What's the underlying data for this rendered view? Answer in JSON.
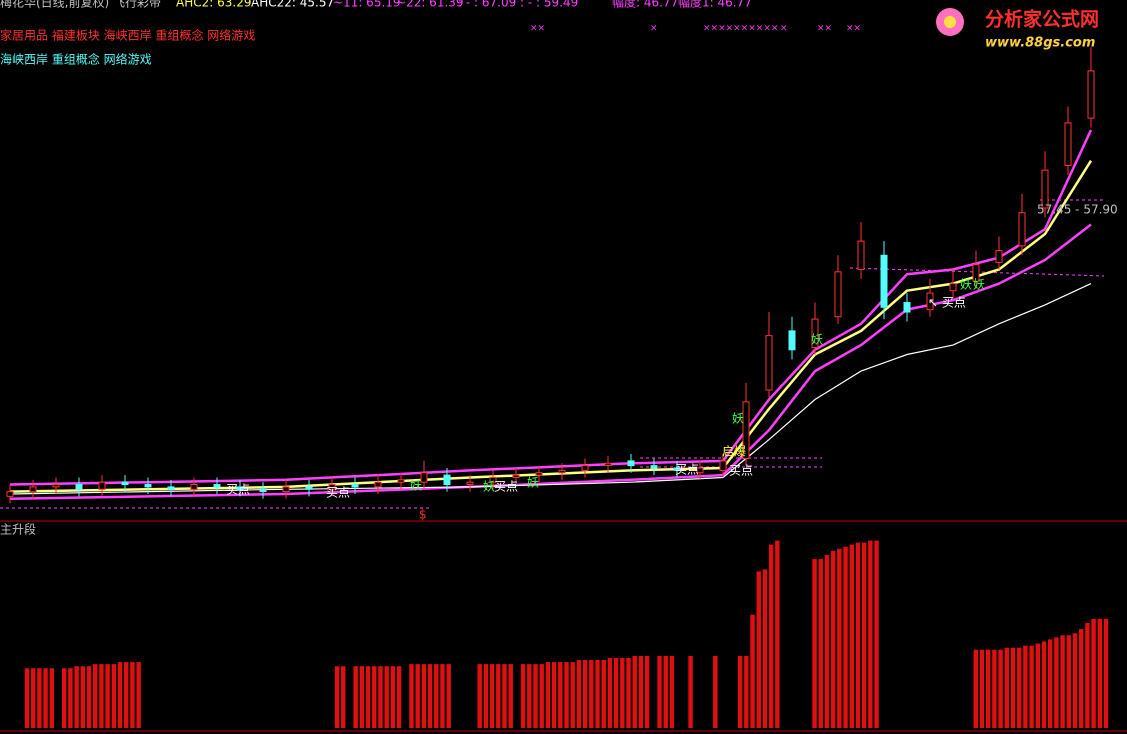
{
  "header": {
    "stock": "梅花华(日线,前复权) 飞行彩带",
    "indicators": [
      "AHC2: 63.29",
      "AHC22: 45.57",
      "~11: 65.19",
      "~22: 61.39",
      ": - : 67.09",
      ": - : 59.49"
    ],
    "ranges": [
      "幅度: 46.77",
      "幅度1: 46.77"
    ],
    "sectors": "家居用品 福建板块 海峡西岸 重组概念 网络游戏",
    "concepts": "海峡西岸 重组概念 网络游戏",
    "signals": [
      "××",
      "×",
      "××××××××××",
      "×",
      "××",
      "××"
    ]
  },
  "logo": {
    "title": "分析家公式网",
    "url": "www.88gs.com"
  },
  "annotations": {
    "price_range": "57.45 - 57.90",
    "buy": "买点",
    "buy_arrow": "↖ 买点",
    "launch": "启爆",
    "jump": "妖",
    "dollar": "$"
  },
  "chart_data": [
    {
      "type": "candlestick",
      "xlim": [
        0,
        47
      ],
      "ylim": [
        44,
        66
      ],
      "up_color": "#ff3232",
      "down_color": "#54fcfc",
      "open": [
        45.0,
        45.2,
        45.4,
        45.5,
        45.3,
        45.6,
        45.5,
        45.4,
        45.3,
        45.5,
        45.4,
        45.3,
        45.2,
        45.4,
        45.3,
        45.5,
        45.4,
        45.6,
        45.6,
        45.9,
        45.5,
        45.6,
        45.8,
        45.9,
        46.0,
        46.1,
        46.3,
        46.5,
        46.3,
        46.2,
        46.0,
        46.1,
        46.6,
        49.5,
        52.0,
        51.3,
        52.6,
        54.6,
        55.2,
        53.2,
        52.9,
        53.7,
        54.1,
        54.9,
        55.6,
        57.2,
        59.0,
        61.0
      ],
      "high": [
        45.5,
        45.7,
        45.8,
        45.8,
        45.9,
        45.9,
        45.8,
        45.7,
        45.8,
        45.8,
        45.7,
        45.6,
        45.7,
        45.7,
        45.8,
        45.8,
        45.9,
        46.0,
        46.5,
        46.2,
        45.9,
        46.1,
        46.2,
        46.3,
        46.4,
        46.6,
        46.7,
        46.8,
        46.6,
        46.5,
        46.5,
        46.8,
        49.8,
        52.8,
        52.6,
        53.2,
        55.2,
        56.6,
        55.8,
        53.6,
        54.2,
        54.6,
        55.4,
        56.0,
        57.8,
        59.6,
        61.5,
        64.0
      ],
      "low": [
        44.7,
        44.9,
        45.1,
        45.0,
        45.0,
        45.2,
        45.1,
        45.0,
        45.0,
        45.1,
        45.0,
        44.9,
        44.9,
        45.0,
        45.0,
        45.1,
        45.1,
        45.3,
        45.3,
        45.2,
        45.2,
        45.3,
        45.5,
        45.6,
        45.7,
        45.8,
        46.0,
        46.0,
        45.9,
        45.8,
        45.7,
        45.8,
        46.3,
        49.2,
        50.8,
        51.0,
        52.3,
        54.2,
        52.5,
        52.4,
        52.6,
        53.4,
        53.8,
        54.6,
        55.2,
        56.8,
        58.6,
        60.6
      ],
      "close": [
        45.2,
        45.4,
        45.5,
        45.3,
        45.6,
        45.5,
        45.4,
        45.3,
        45.5,
        45.4,
        45.3,
        45.2,
        45.4,
        45.3,
        45.5,
        45.4,
        45.6,
        45.7,
        46.0,
        45.5,
        45.6,
        45.8,
        45.9,
        46.0,
        46.1,
        46.3,
        46.4,
        46.3,
        46.2,
        46.1,
        46.2,
        46.5,
        49.0,
        51.8,
        51.2,
        52.5,
        54.5,
        55.8,
        53.0,
        52.8,
        53.6,
        54.0,
        54.8,
        55.4,
        57.0,
        58.8,
        60.8,
        63.0
      ],
      "series": [
        {
          "color": "#ff40ff",
          "x": [
            0,
            6,
            12,
            20,
            27,
            31,
            33,
            35,
            37,
            39,
            41,
            43,
            45,
            47
          ],
          "values": [
            45.5,
            45.6,
            45.7,
            46.1,
            46.4,
            46.5,
            49.1,
            51.2,
            52.3,
            54.4,
            54.6,
            55.1,
            56.3,
            60.5
          ]
        },
        {
          "color": "#ffff80",
          "x": [
            0,
            6,
            12,
            20,
            27,
            31,
            33,
            35,
            37,
            39,
            41,
            43,
            45,
            47
          ],
          "values": [
            45.2,
            45.3,
            45.4,
            45.8,
            46.1,
            46.2,
            48.7,
            51.0,
            52.0,
            53.7,
            54.0,
            54.6,
            56.1,
            59.2
          ]
        },
        {
          "color": "#ff40ff",
          "x": [
            0,
            6,
            12,
            20,
            27,
            31,
            33,
            35,
            37,
            39,
            41,
            43,
            45,
            47
          ],
          "values": [
            44.9,
            45.0,
            45.1,
            45.4,
            45.7,
            45.9,
            47.8,
            50.3,
            51.4,
            52.9,
            53.3,
            54.0,
            55.0,
            56.5
          ]
        },
        {
          "color": "#ffffff",
          "x": [
            0,
            6,
            12,
            20,
            27,
            31,
            33,
            35,
            37,
            39,
            41,
            43,
            45,
            47
          ],
          "values": [
            45.1,
            45.2,
            45.3,
            45.4,
            45.6,
            45.8,
            47.4,
            49.1,
            50.3,
            51.0,
            51.4,
            52.3,
            53.1,
            54.0
          ]
        }
      ]
    },
    {
      "type": "bar",
      "title": "主升段",
      "color": "#e01010",
      "xlim": [
        0,
        174
      ],
      "ylim": [
        0,
        100
      ],
      "x": [
        0,
        1,
        2,
        3,
        4,
        6,
        7,
        8,
        9,
        10,
        11,
        12,
        13,
        14,
        15,
        16,
        17,
        18,
        50,
        51,
        53,
        54,
        55,
        56,
        57,
        58,
        59,
        60,
        62,
        63,
        64,
        65,
        66,
        67,
        68,
        73,
        74,
        75,
        76,
        77,
        78,
        80,
        81,
        82,
        83,
        84,
        85,
        86,
        87,
        88,
        89,
        90,
        91,
        92,
        93,
        94,
        95,
        96,
        97,
        98,
        99,
        100,
        102,
        103,
        104,
        107,
        111,
        115,
        116,
        117,
        118,
        119,
        120,
        121,
        127,
        128,
        129,
        130,
        131,
        132,
        133,
        134,
        135,
        136,
        137,
        153,
        154,
        155,
        156,
        157,
        158,
        159,
        160,
        161,
        162,
        163,
        164,
        165,
        166,
        167,
        168,
        169,
        170,
        171,
        172,
        173,
        174
      ],
      "values": [
        29,
        29,
        29,
        29,
        29,
        29,
        29,
        30,
        30,
        30,
        31,
        31,
        31,
        31,
        32,
        32,
        32,
        32,
        30,
        30,
        30,
        30,
        30,
        30,
        30,
        30,
        30,
        30,
        31,
        31,
        31,
        31,
        31,
        31,
        31,
        31,
        31,
        31,
        31,
        31,
        31,
        31,
        31,
        31,
        31,
        32,
        32,
        32,
        32,
        32,
        33,
        33,
        33,
        33,
        33,
        34,
        34,
        34,
        34,
        35,
        35,
        35,
        35,
        35,
        35,
        35,
        35,
        35,
        35,
        55,
        76,
        77,
        89,
        91,
        82,
        82,
        84,
        86,
        87,
        88,
        89,
        90,
        90,
        91,
        91,
        38,
        38,
        38,
        38,
        38,
        39,
        39,
        39,
        40,
        40,
        41,
        42,
        43,
        44,
        45,
        45,
        46,
        48,
        51,
        53,
        53,
        53
      ]
    }
  ]
}
